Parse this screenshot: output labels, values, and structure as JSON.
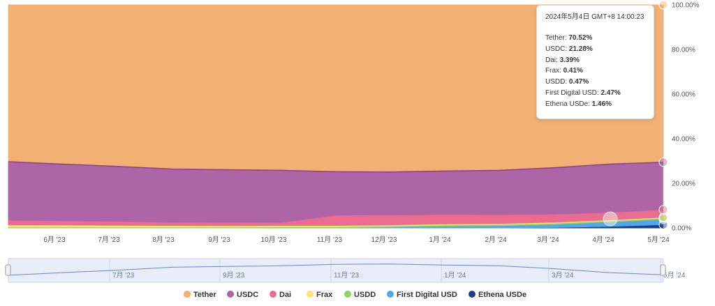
{
  "chart_data": {
    "type": "area",
    "stacked": true,
    "normalized": true,
    "x_ticks": [
      "6月 '23",
      "7月 '23",
      "8月 '23",
      "9月 '23",
      "10月 '23",
      "11月 '23",
      "12月 '23",
      "1月 '24",
      "2月 '24",
      "3月 '24",
      "4月 '24",
      "5月 '24"
    ],
    "y_ticks": [
      "0.00%",
      "20.00%",
      "40.00%",
      "60.00%",
      "80.00%",
      "100.00%"
    ],
    "ylim": [
      0,
      100
    ],
    "x_points": [
      "2023-05",
      "2023-06",
      "2023-07",
      "2023-08",
      "2023-09",
      "2023-10",
      "2023-11",
      "2023-12",
      "2024-01",
      "2024-02",
      "2024-03",
      "2024-04",
      "2024-05-04"
    ],
    "series": [
      {
        "name": "Tether",
        "color": "#f2b173",
        "values": [
          70.3,
          71.4,
          72.4,
          73.6,
          73.9,
          74.2,
          74.8,
          74.9,
          74.5,
          74.2,
          73.0,
          71.4,
          70.52
        ]
      },
      {
        "name": "USDC",
        "color": "#ad65a7",
        "values": [
          26.2,
          25.4,
          24.6,
          23.8,
          23.6,
          23.3,
          19.5,
          19.2,
          19.4,
          19.8,
          20.8,
          21.6,
          21.28
        ]
      },
      {
        "name": "Dai",
        "color": "#ea6c8f",
        "values": [
          2.1,
          1.9,
          1.8,
          1.5,
          1.5,
          1.4,
          4.6,
          4.5,
          4.3,
          4.0,
          3.6,
          3.4,
          3.39
        ]
      },
      {
        "name": "Frax",
        "color": "#f7e56d",
        "values": [
          1.0,
          0.9,
          0.8,
          0.7,
          0.6,
          0.6,
          0.6,
          0.5,
          0.5,
          0.5,
          0.5,
          0.4,
          0.41
        ]
      },
      {
        "name": "USDD",
        "color": "#8fd462",
        "values": [
          0.4,
          0.4,
          0.4,
          0.4,
          0.4,
          0.4,
          0.4,
          0.5,
          0.5,
          0.5,
          0.5,
          0.5,
          0.47
        ]
      },
      {
        "name": "First Digital USD",
        "color": "#52a8e6",
        "values": [
          0.0,
          0.0,
          0.0,
          0.0,
          0.0,
          0.1,
          0.1,
          0.4,
          0.8,
          1.0,
          1.4,
          2.0,
          2.47
        ]
      },
      {
        "name": "Ethena USDe",
        "color": "#1f3d8f",
        "values": [
          0.0,
          0.0,
          0.0,
          0.0,
          0.0,
          0.0,
          0.0,
          0.0,
          0.0,
          0.0,
          0.2,
          0.7,
          1.46
        ]
      }
    ],
    "navigator_ticks": [
      "7月 '23",
      "9月 '23",
      "11月 '23",
      "1月 '24",
      "3月 '24",
      "5月 '24"
    ],
    "navigator_values": [
      70.3,
      71.4,
      72.4,
      73.6,
      73.9,
      74.2,
      74.8,
      74.9,
      74.5,
      74.2,
      73.0,
      71.4,
      70.52
    ],
    "legend_position": "bottom"
  },
  "tooltip": {
    "title": "2024年5月4日 GMT+8 14:00:23",
    "rows": [
      {
        "label": "Tether: ",
        "value": "70.52%"
      },
      {
        "label": "USDC: ",
        "value": "21.28%"
      },
      {
        "label": "Dai: ",
        "value": "3.39%"
      },
      {
        "label": "Frax: ",
        "value": "0.41%"
      },
      {
        "label": "USDD: ",
        "value": "0.47%"
      },
      {
        "label": "First Digital USD: ",
        "value": "2.47%"
      },
      {
        "label": "Ethena USDe: ",
        "value": "1.46%"
      }
    ]
  }
}
